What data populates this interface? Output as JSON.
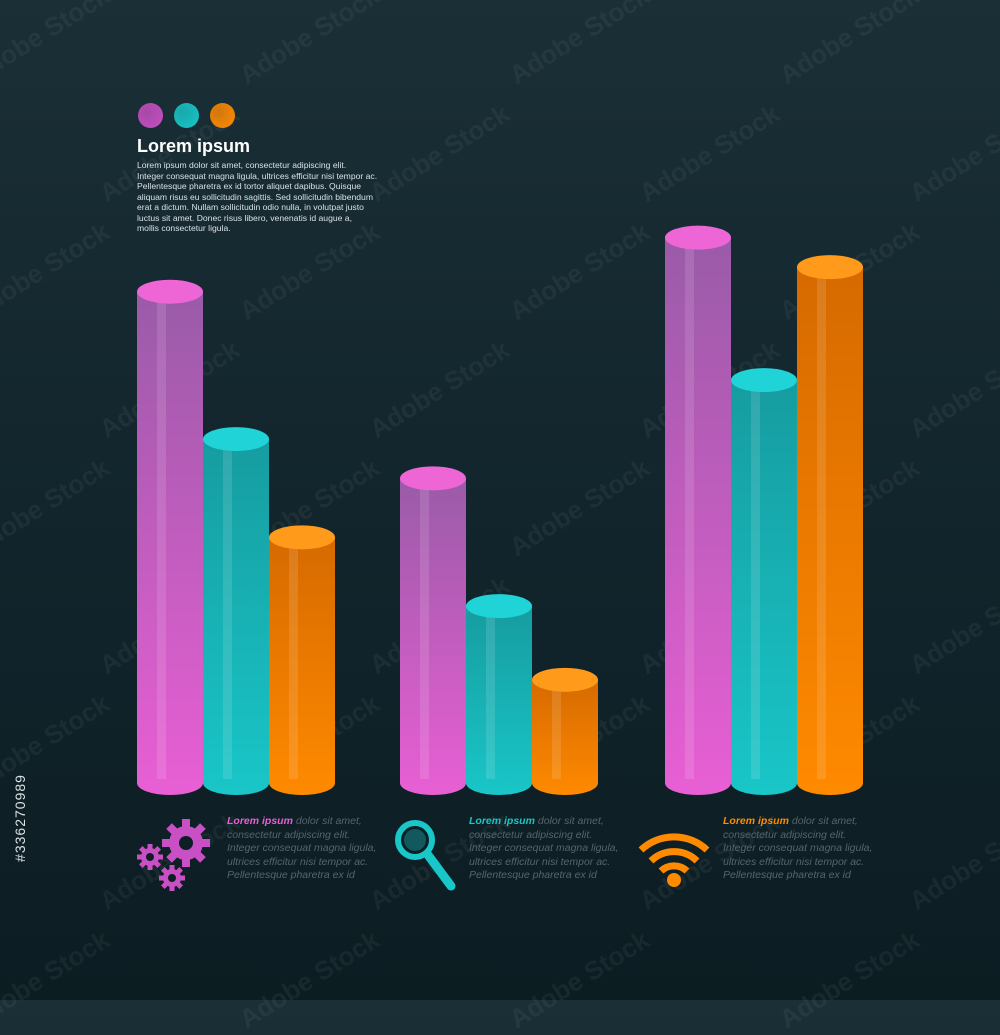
{
  "header": {
    "dot_colors": [
      "#c94fc4",
      "#19c6c8",
      "#ff8a00"
    ],
    "title": "Lorem ipsum",
    "intro_lines": [
      "Lorem ipsum dolor sit amet, consectetur adipiscing elit.",
      "Integer consequat magna ligula, ultrices efficitur nisi tempor ac.",
      "Pellentesque pharetra ex id tortor aliquet dapibus. Quisque",
      "aliquam risus eu sollicitudin sagittis. Sed sollicitudin bibendum",
      "erat a dictum. Nullam sollicitudin odio nulla, in volutpat justo",
      "luctus sit amet. Donec risus libero, venenatis id augue a,",
      "mollis consectetur ligula."
    ]
  },
  "chart_data": {
    "type": "bar",
    "categories": [
      "",
      "",
      ""
    ],
    "series": [
      {
        "color": "#e85fd4",
        "values": [
          100,
          62,
          111
        ]
      },
      {
        "color": "#19c6c8",
        "values": [
          70,
          36,
          82
        ]
      },
      {
        "color": "#ff8a00",
        "values": [
          50,
          21,
          105
        ]
      }
    ],
    "ylim": [
      0,
      115
    ],
    "grid": false,
    "title": "",
    "xlabel": "",
    "ylabel": ""
  },
  "captions": [
    {
      "lead": "Lorem ipsum",
      "rest": " dolor sit amet, consectetur adipiscing elit. Integer consequat magna ligula, ultrices efficitur nisi tempor ac. Pellentesque pharetra ex id",
      "color": "#e85fd4",
      "icon": "gears-icon"
    },
    {
      "lead": "Lorem ipsum",
      "rest": " dolor sit amet, consectetur adipiscing elit. Integer consequat magna ligula, ultrices efficitur nisi tempor ac. Pellentesque pharetra ex id",
      "color": "#19c6c8",
      "icon": "magnifier-icon"
    },
    {
      "lead": "Lorem ipsum",
      "rest": " dolor sit amet, consectetur adipiscing elit. Integer consequat magna ligula, ultrices efficitur nisi tempor ac. Pellentesque pharetra ex id",
      "color": "#ff8a00",
      "icon": "wifi-icon"
    }
  ],
  "watermark": {
    "text": "Adobe Stock",
    "stock_id": "#336270989"
  }
}
